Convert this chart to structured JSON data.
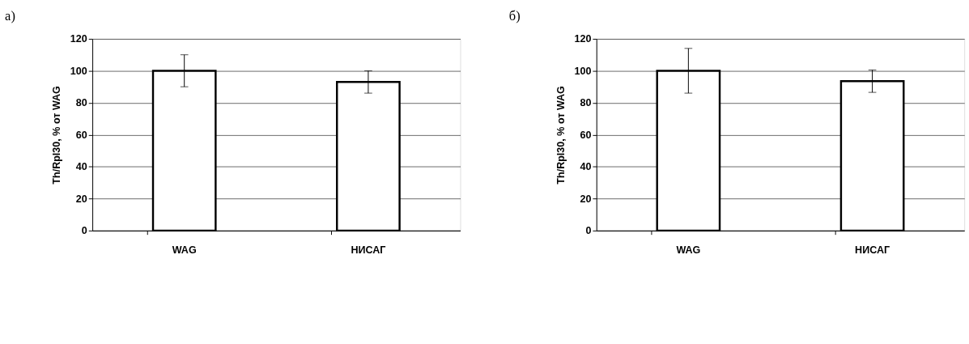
{
  "chart_data": [
    {
      "type": "bar",
      "title": "а)",
      "ylabel": "Th/Rpl30, % от WAG",
      "categories": [
        "WAG",
        "НИСАГ"
      ],
      "values": [
        100,
        93
      ],
      "errors": [
        10,
        7
      ],
      "colors": [
        "#ffffff",
        "#ffffff"
      ],
      "ylim": [
        0,
        120
      ],
      "yticks": [
        0,
        20,
        40,
        60,
        80,
        100,
        120
      ],
      "grid": "y"
    },
    {
      "type": "bar",
      "title": "б)",
      "ylabel": "Th/Rpl30, % от WAG",
      "categories": [
        "WAG",
        "НИСАГ"
      ],
      "values": [
        100,
        93.5
      ],
      "errors": [
        14,
        7
      ],
      "colors": [
        "#ffffff",
        "#ffffff"
      ],
      "ylim": [
        0,
        120
      ],
      "yticks": [
        0,
        20,
        40,
        60,
        80,
        100,
        120
      ],
      "grid": "y"
    }
  ]
}
